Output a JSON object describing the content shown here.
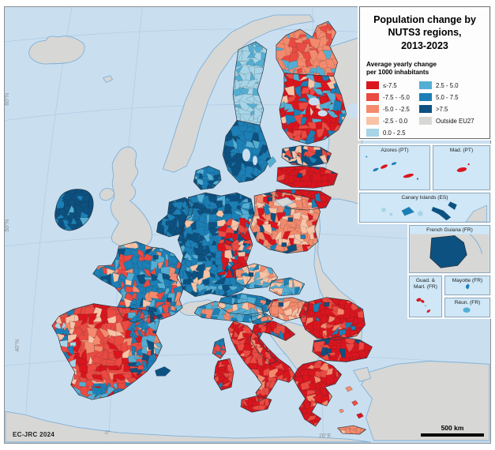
{
  "map": {
    "title_lines": [
      "Population change by",
      "NUTS3 regions,",
      "2013-2023"
    ],
    "attribution": "EC-JRC 2024",
    "scale_label": "500 km"
  },
  "legend": {
    "heading_lines": [
      "Average yearly change",
      "per 1000 inhabitants"
    ],
    "classes": [
      {
        "label": "≤-7.5",
        "color": "#da151e"
      },
      {
        "label": "-7.5 - -5.0",
        "color": "#ea4a42"
      },
      {
        "label": "-5.0 - -2.5",
        "color": "#f48a6d"
      },
      {
        "label": "-2.5 - 0.0",
        "color": "#f8c3a6"
      },
      {
        "label": "0.0 - 2.5",
        "color": "#a7d4e7"
      },
      {
        "label": "2.5 - 5.0",
        "color": "#54aed3"
      },
      {
        "label": "5.0 - 7.5",
        "color": "#1c7fb5"
      },
      {
        "label": ">7.5",
        "color": "#0d5181"
      }
    ],
    "outside": {
      "label": "Outside EU27",
      "color": "#d7d7d5"
    }
  },
  "insets": {
    "azores": "Azores (PT)",
    "madeira": "Mad. (PT)",
    "canary": "Canary Islands (ES)",
    "guiana": "French Guiana (FR)",
    "guad_mart_lines": [
      "Guad. &",
      "Mart. (FR)"
    ],
    "mayotte": "Mayotte (FR)",
    "reunion": "Réun. (FR)"
  },
  "graticule": {
    "lat": [
      "60°N",
      "50°N",
      "40°N"
    ],
    "lon": [
      "0°",
      "20°E"
    ]
  },
  "colors": {
    "sea": "#c9dff0",
    "coast": "#7fb0d8",
    "graticule": "#b3cde4",
    "frame": "#8a8f94"
  }
}
